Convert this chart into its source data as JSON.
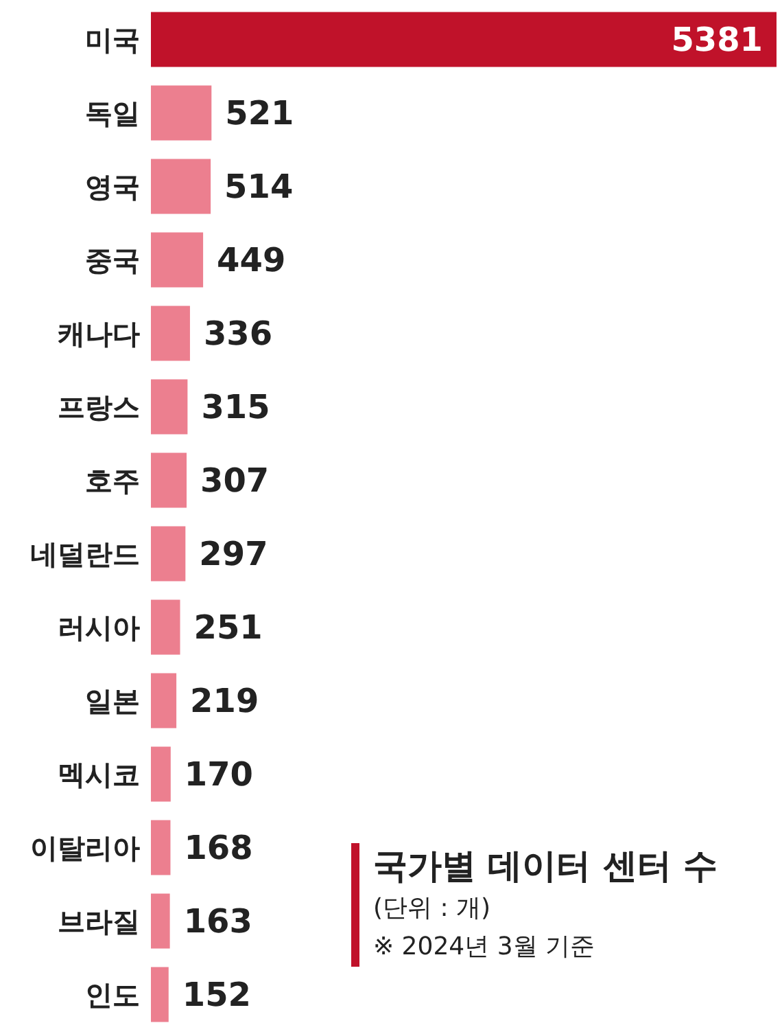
{
  "chart_data": {
    "type": "bar",
    "orientation": "horizontal",
    "title": "국가별 데이터 센터 수",
    "annotations": [
      "(단위 : 개)",
      "※ 2024년 3월 기준"
    ],
    "categories": [
      "미국",
      "독일",
      "영국",
      "중국",
      "캐나다",
      "프랑스",
      "호주",
      "네덜란드",
      "러시아",
      "일본",
      "멕시코",
      "이탈리아",
      "브라질",
      "인도"
    ],
    "values": [
      5381,
      521,
      514,
      449,
      336,
      315,
      307,
      297,
      251,
      219,
      170,
      168,
      163,
      152
    ],
    "colors": [
      "#c0122a",
      "#ec7f8f",
      "#ec7f8f",
      "#ec7f8f",
      "#ec7f8f",
      "#ec7f8f",
      "#ec7f8f",
      "#ec7f8f",
      "#ec7f8f",
      "#ec7f8f",
      "#ec7f8f",
      "#ec7f8f",
      "#ec7f8f",
      "#ec7f8f"
    ],
    "data_labels": true
  }
}
